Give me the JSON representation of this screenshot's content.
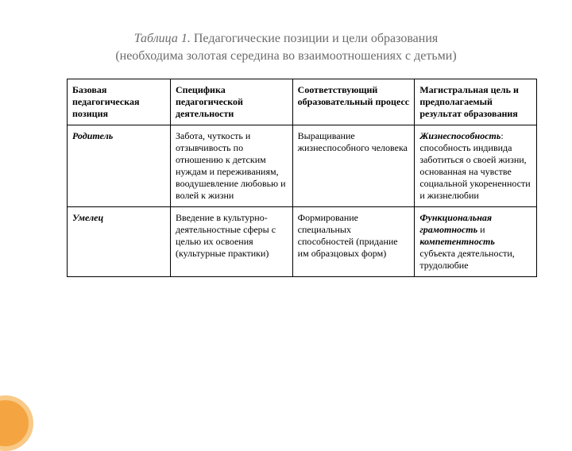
{
  "title": {
    "prefix": "Таблица 1.",
    "main": " Педагогические позиции и цели образования",
    "sub": "(необходима золотая середина во взаимоотношениях с детьми)"
  },
  "table": {
    "columns": [
      "Базовая педагогическая позиция",
      "Специфика педагогической деятельности",
      "Соответствующий образовательный процесс",
      "Магистральная цель и предполагаемый результат образования"
    ],
    "rows": [
      {
        "label": "Родитель",
        "c2": "Забота, чуткость и отзывчивость по отношению к детским нуждам и переживаниям, воодушевление любовью и волей к жизни",
        "c3": "Выращивание жизнеспособного человека",
        "c4_bold": "Жизнеспособность",
        "c4_rest": ": способность индивида заботиться о своей жизни, основанная на чувстве социальной укорененности и жизнелюбии"
      },
      {
        "label": "Умелец",
        "c2": "Введение в культурно-деятельностные сферы с целью их освоения (культурные практики)",
        "c3": "Формирование специальных способностей (придание им образцовых форм)",
        "c4_bold": "Функциональная грамотность",
        "c4_mid": " и ",
        "c4_bold2": "компетентность",
        "c4_rest": " субъекта деятельности, трудолюбие"
      }
    ]
  },
  "colors": {
    "titleColor": "#6b6b6b",
    "accentFill": "#f4a541",
    "accentRing": "#f8c987",
    "border": "#000000",
    "background": "#ffffff"
  }
}
